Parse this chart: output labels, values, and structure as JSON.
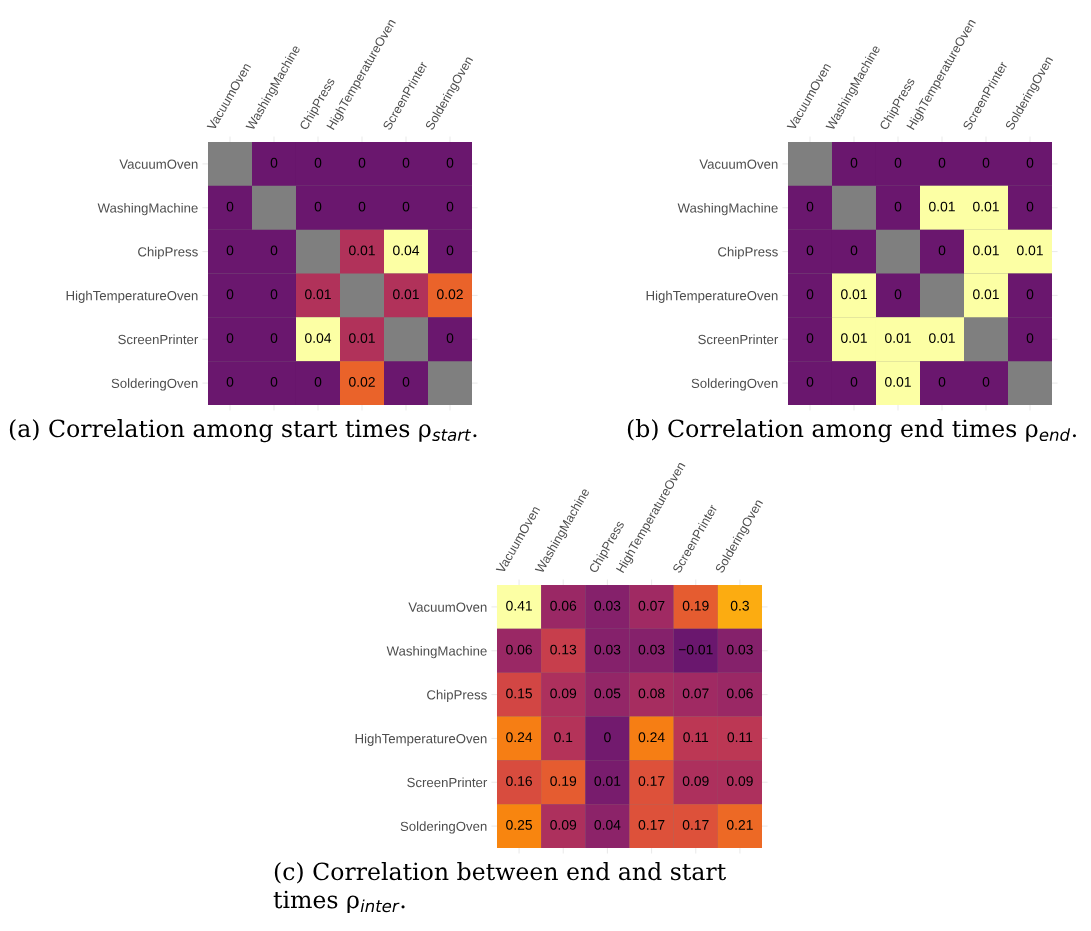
{
  "chart_data": [
    {
      "type": "heatmap",
      "title": "(a) Correlation among start times ρ$_{start}$.",
      "categories": [
        "VacuumOven",
        "WashingMachine",
        "ChipPress",
        "HighTemperatureOven",
        "ScreenPrinter",
        "SolderingOven"
      ],
      "y_categories": [
        "VacuumOven",
        "WashingMachine",
        "ChipPress",
        "HighTemperatureOven",
        "ScreenPrinter",
        "SolderingOven"
      ],
      "cells": [
        [
          null,
          0,
          0,
          0,
          0,
          0
        ],
        [
          0,
          null,
          0,
          0,
          0,
          0
        ],
        [
          0,
          0,
          null,
          0.01,
          0.04,
          0
        ],
        [
          0,
          0,
          0.01,
          null,
          0.01,
          0.02
        ],
        [
          0,
          0,
          0.04,
          0.01,
          null,
          0
        ],
        [
          0,
          0,
          0,
          0.02,
          0,
          null
        ]
      ],
      "data_labels": true
    },
    {
      "type": "heatmap",
      "title": "(b) Correlation among end times ρ$_{end}$.",
      "categories": [
        "VacuumOven",
        "WashingMachine",
        "ChipPress",
        "HighTemperatureOven",
        "ScreenPrinter",
        "SolderingOven"
      ],
      "y_categories": [
        "VacuumOven",
        "WashingMachine",
        "ChipPress",
        "HighTemperatureOven",
        "ScreenPrinter",
        "SolderingOven"
      ],
      "cells": [
        [
          null,
          0,
          0,
          0,
          0,
          0
        ],
        [
          0,
          null,
          0,
          0.01,
          0.01,
          0
        ],
        [
          0,
          0,
          null,
          0,
          0.01,
          0.01
        ],
        [
          0,
          0.01,
          0,
          null,
          0.01,
          0
        ],
        [
          0,
          0.01,
          0.01,
          0.01,
          null,
          0
        ],
        [
          0,
          0,
          0.01,
          0,
          0,
          null
        ]
      ],
      "data_labels": true
    },
    {
      "type": "heatmap",
      "title": "(c) Correlation between end and start\ntimes ρ$_{inter}$.",
      "categories": [
        "VacuumOven",
        "WashingMachine",
        "ChipPress",
        "HighTemperatureOven",
        "ScreenPrinter",
        "SolderingOven"
      ],
      "y_categories": [
        "VacuumOven",
        "WashingMachine",
        "ChipPress",
        "HighTemperatureOven",
        "ScreenPrinter",
        "SolderingOven"
      ],
      "cells": [
        [
          0.41,
          0.06,
          0.03,
          0.07,
          0.19,
          0.3
        ],
        [
          0.06,
          0.13,
          0.03,
          0.03,
          -0.01,
          0.03
        ],
        [
          0.15,
          0.09,
          0.05,
          0.08,
          0.07,
          0.06
        ],
        [
          0.24,
          0.1,
          0,
          0.24,
          0.11,
          0.11
        ],
        [
          0.16,
          0.19,
          0.01,
          0.17,
          0.09,
          0.09
        ],
        [
          0.25,
          0.09,
          0.04,
          0.17,
          0.17,
          0.21
        ]
      ],
      "data_labels": true
    }
  ]
}
